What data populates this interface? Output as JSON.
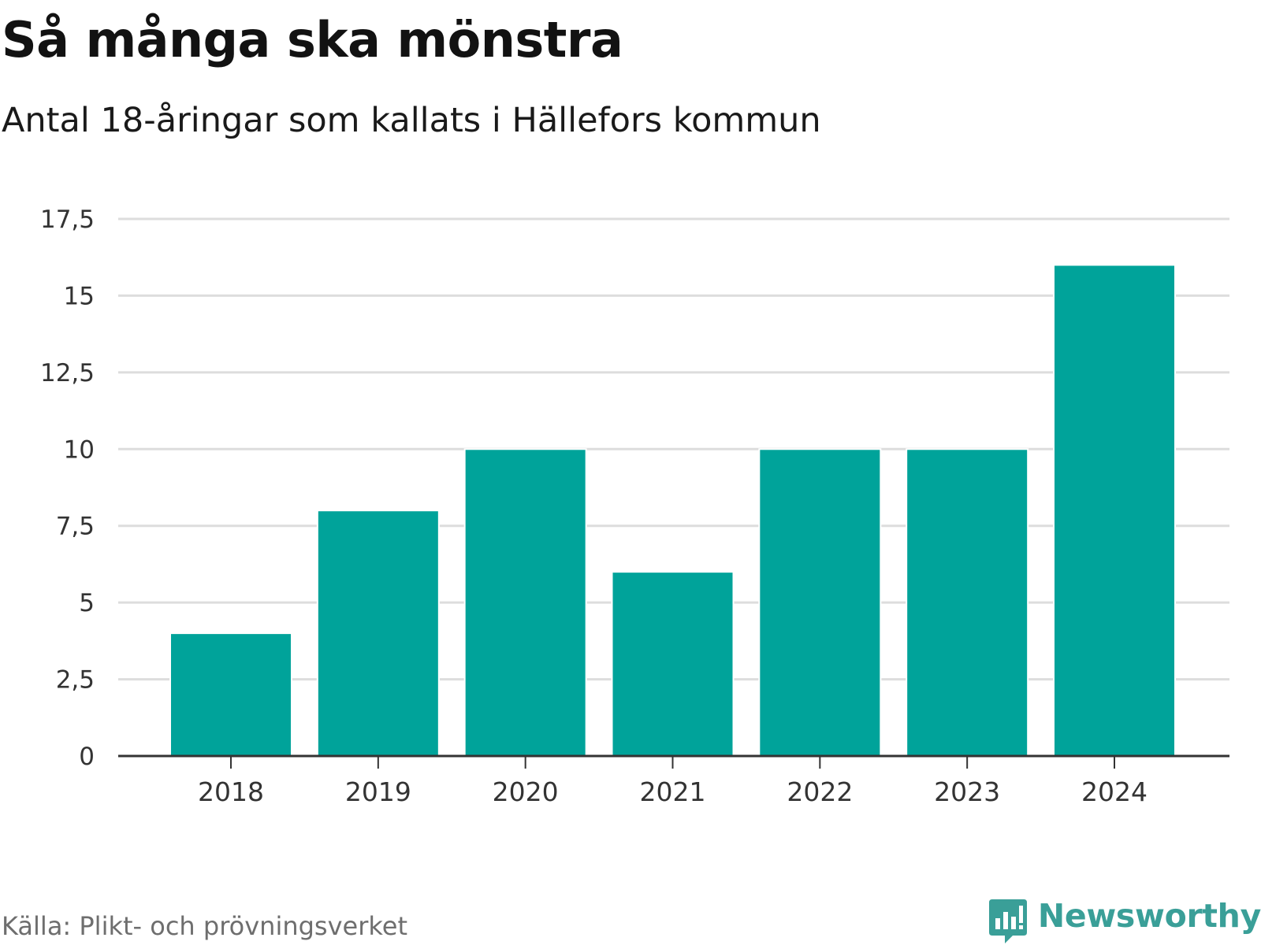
{
  "title": "Så många ska mönstra",
  "subtitle": "Antal 18-åringar som kallats i Hällefors kommun",
  "source": "Källa: Plikt- och prövningsverket",
  "brand": {
    "name": "Newsworthy",
    "icon": "newsworthy-logo-icon",
    "color": "#3a9f98"
  },
  "colors": {
    "bar": "#00a39a",
    "grid": "#dddddd",
    "axis": "#333333"
  },
  "chart_data": {
    "type": "bar",
    "categories": [
      "2018",
      "2019",
      "2020",
      "2021",
      "2022",
      "2023",
      "2024"
    ],
    "values": [
      4,
      8,
      10,
      6,
      10,
      10,
      16
    ],
    "title": "Så många ska mönstra",
    "subtitle": "Antal 18-åringar som kallats i Hällefors kommun",
    "xlabel": "",
    "ylabel": "",
    "ylim": [
      0,
      17.5
    ],
    "yticks": [
      0,
      2.5,
      5,
      7.5,
      10,
      12.5,
      15,
      17.5
    ],
    "ytick_labels": [
      "0",
      "2,5",
      "5",
      "7,5",
      "10",
      "12,5",
      "15",
      "17,5"
    ],
    "grid": true,
    "legend": "none"
  }
}
